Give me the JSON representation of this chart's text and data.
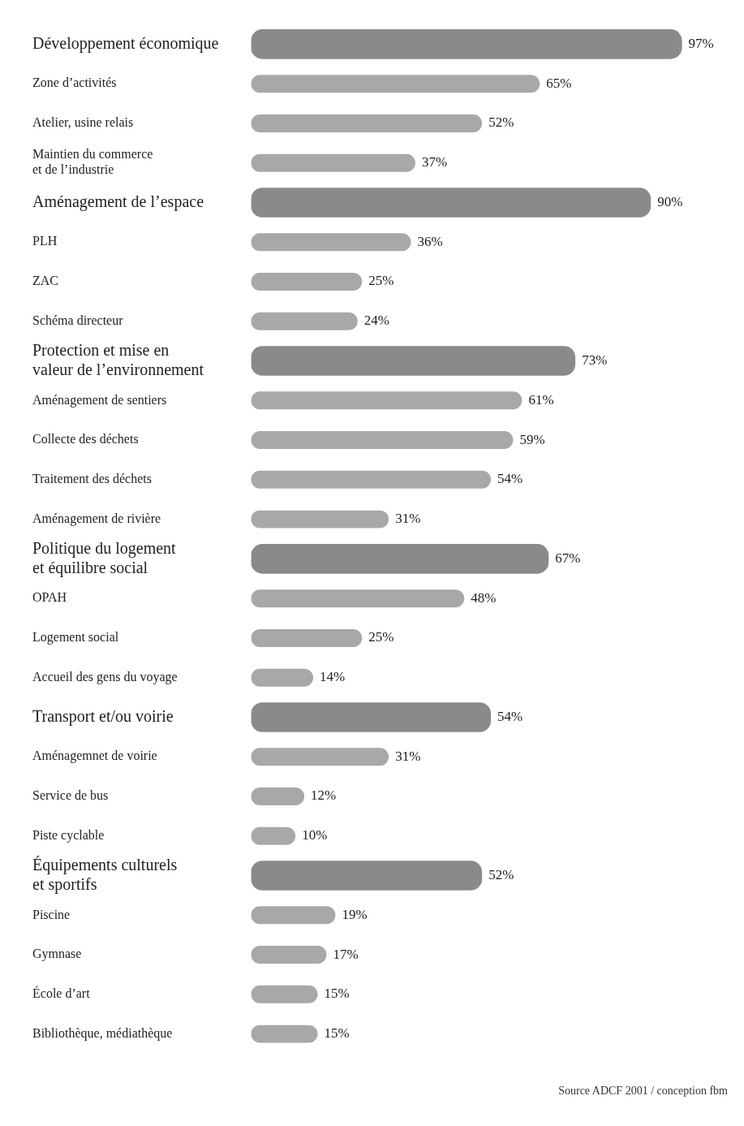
{
  "chart_data": {
    "type": "bar",
    "orientation": "horizontal",
    "categories": [
      "Développement économique",
      "Zone d’activités",
      "Atelier, usine relais",
      "Maintien du commerce\net de l’industrie",
      "Aménagement de l’espace",
      "PLH",
      "ZAC",
      "Schéma directeur",
      "Protection et mise en\nvaleur de l’environnement",
      "Aménagement de sentiers",
      "Collecte des déchets",
      "Traitement des déchets",
      "Aménagement de rivière",
      "Politique du logement\net équilibre social",
      "OPAH",
      "Logement social",
      "Accueil des gens du voyage",
      "Transport et/ou voirie",
      "Aménagemnet de voirie",
      "Service de bus",
      "Piste cyclable",
      "Équipements culturels\net sportifs",
      "Piscine",
      "Gymnase",
      "École d’art",
      "Bibliothèque, médiathèque"
    ],
    "series": [
      {
        "color": "#8a8a8a",
        "values": [
          97,
          null,
          null,
          null,
          90,
          null,
          null,
          null,
          73,
          null,
          null,
          null,
          null,
          67,
          null,
          null,
          null,
          54,
          null,
          null,
          null,
          52,
          null,
          null,
          null,
          null
        ],
        "value_labels": [
          "97%",
          null,
          null,
          null,
          "90%",
          null,
          null,
          null,
          "73%",
          null,
          null,
          null,
          null,
          "67%",
          null,
          null,
          null,
          "54%",
          null,
          null,
          null,
          "52%",
          null,
          null,
          null,
          null
        ]
      },
      {
        "color": "#a8a8a8",
        "values": [
          null,
          65,
          52,
          37,
          null,
          36,
          25,
          24,
          null,
          61,
          59,
          54,
          31,
          null,
          48,
          25,
          14,
          null,
          31,
          12,
          10,
          null,
          19,
          17,
          15,
          15
        ],
        "value_labels": [
          null,
          "65%",
          "52%",
          "37%",
          null,
          "36%",
          "25%",
          "24%",
          null,
          "61%",
          "59%",
          "54%",
          "31%",
          null,
          "48%",
          "25%",
          "14%",
          null,
          "31%",
          "12%",
          "10%",
          null,
          "19%",
          "17%",
          "15%",
          "15%"
        ]
      }
    ],
    "tick_labels": "y",
    "grid": false,
    "annotations": [
      "Source ADCF 2001 / conception fbm"
    ]
  }
}
